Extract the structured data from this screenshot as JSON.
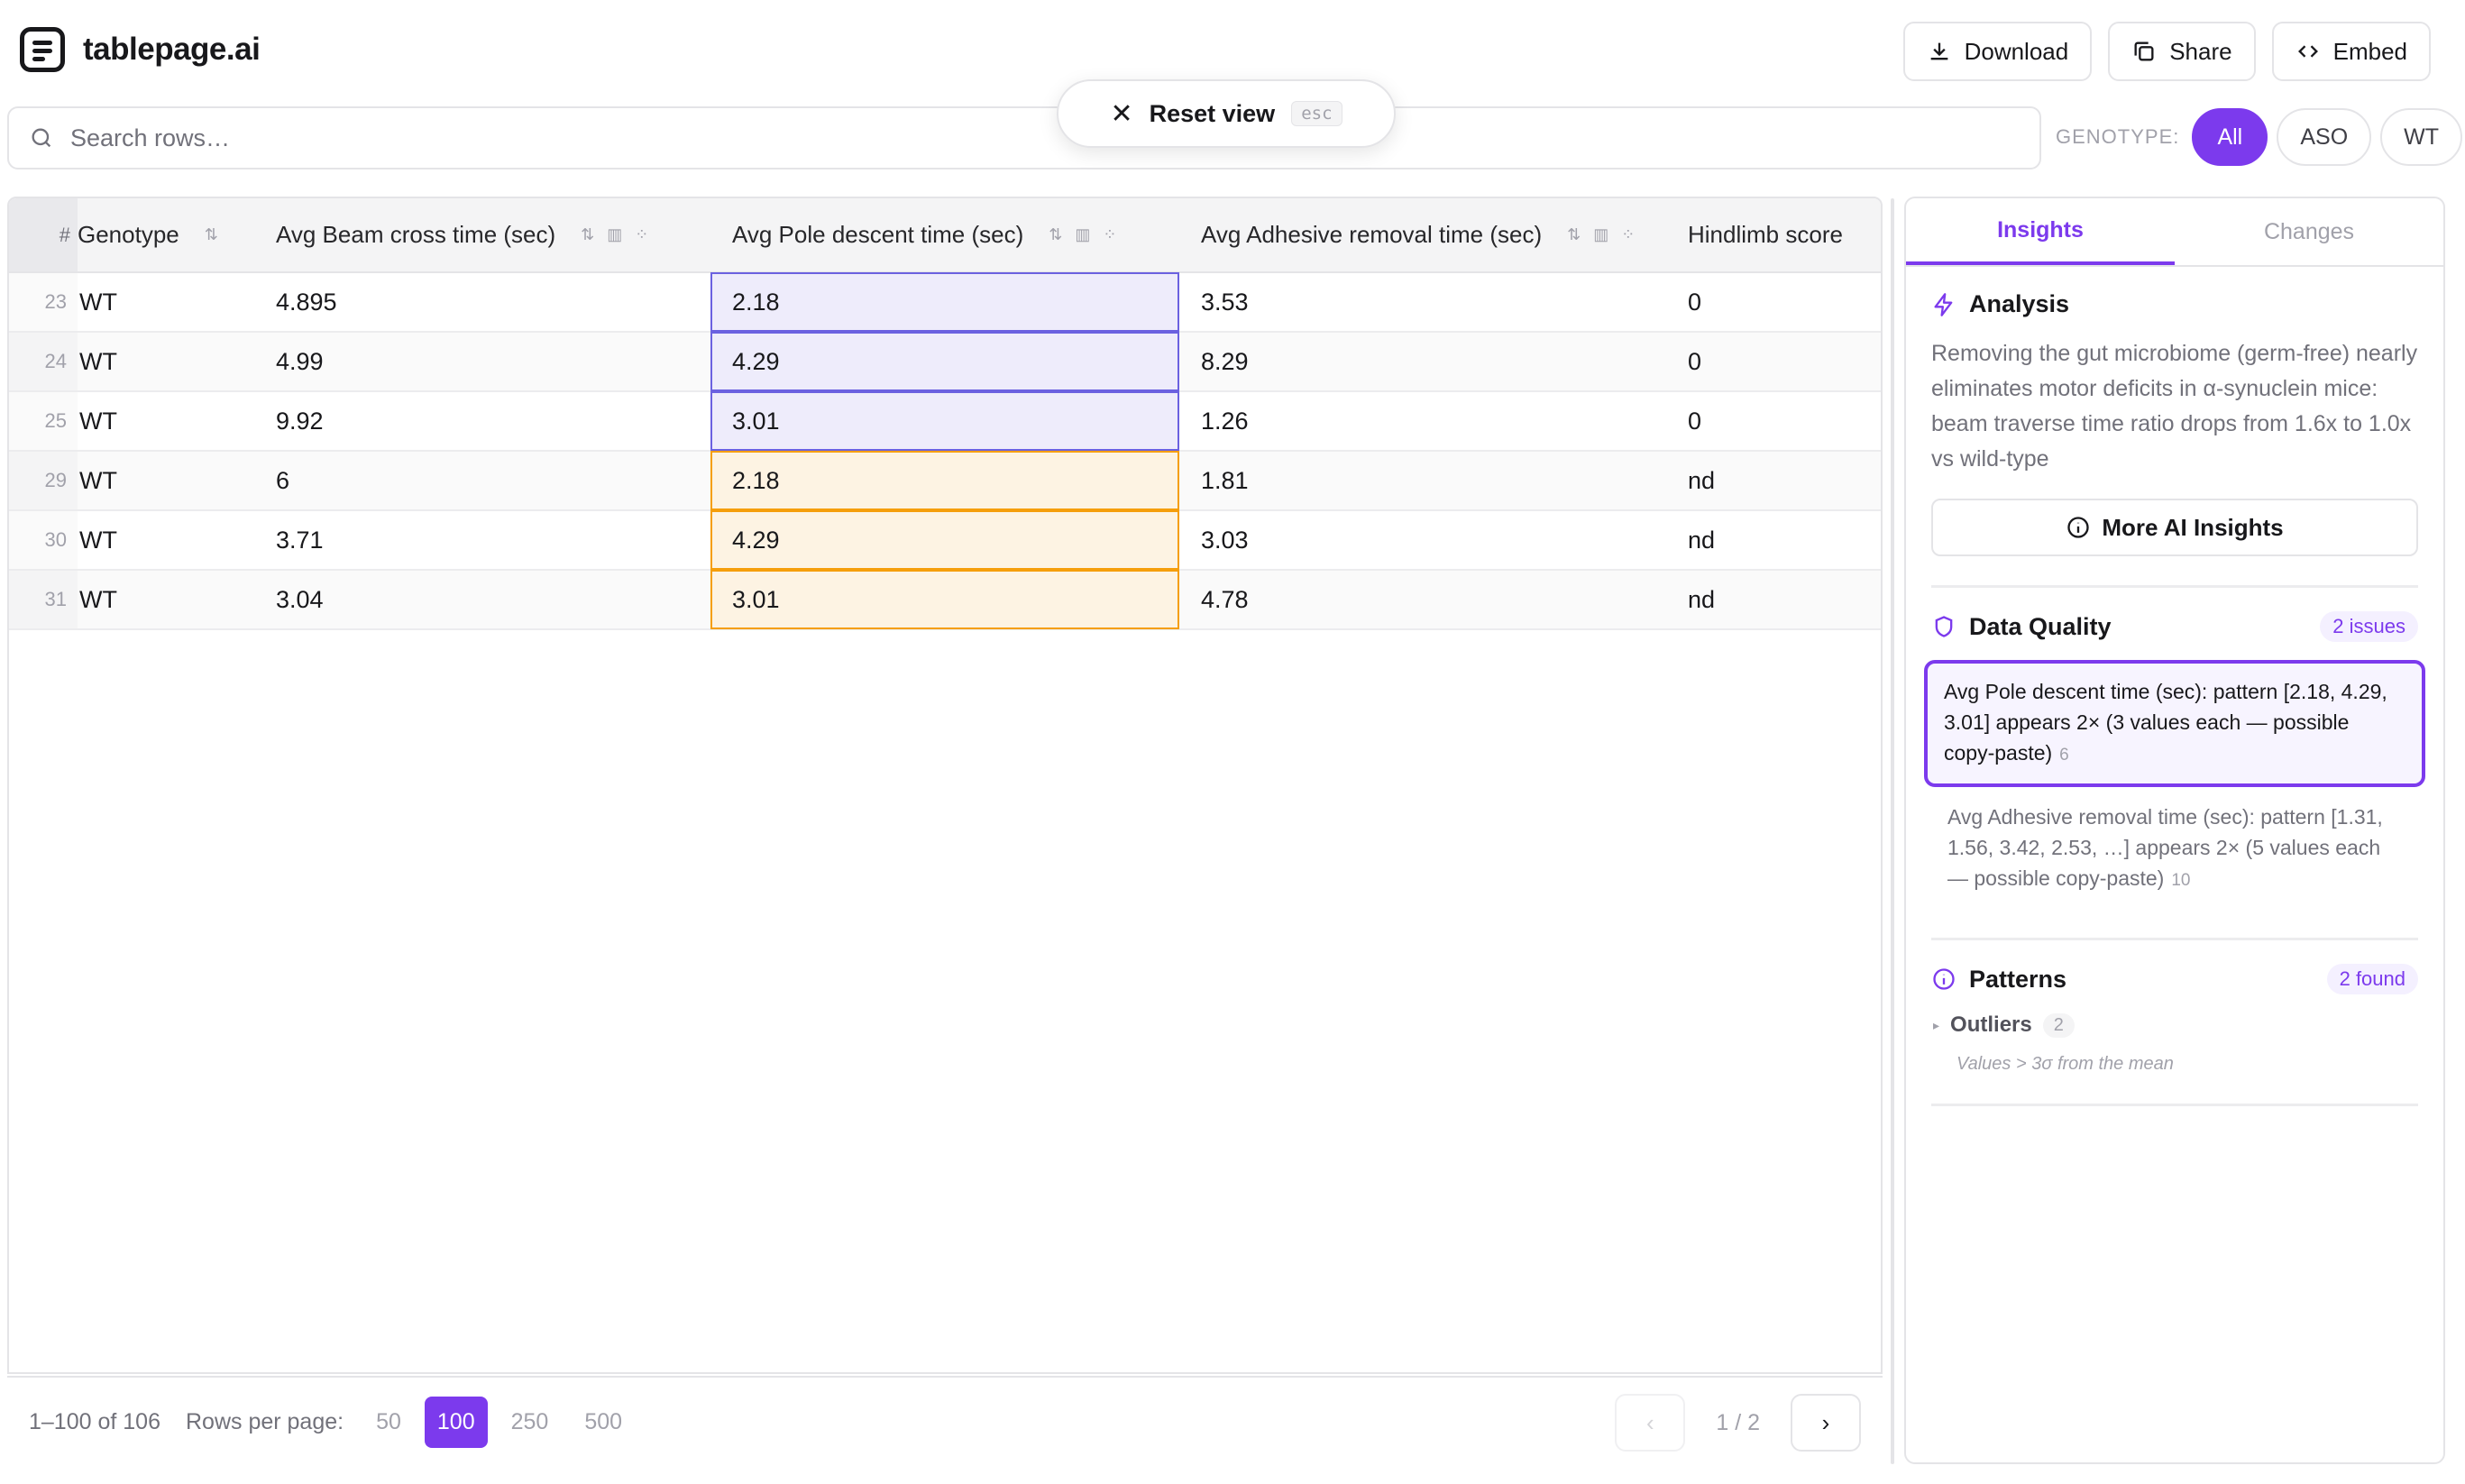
{
  "app": {
    "name": "tablepage.ai"
  },
  "toolbar": {
    "download_label": "Download",
    "share_label": "Share",
    "embed_label": "Embed"
  },
  "reset": {
    "label": "Reset view",
    "shortcut": "esc"
  },
  "search": {
    "placeholder": "Search rows…",
    "value": ""
  },
  "genotype_filter": {
    "label": "GENOTYPE:",
    "options": [
      "All",
      "ASO",
      "WT"
    ],
    "selected": "All"
  },
  "table": {
    "columns": [
      "#",
      "Genotype",
      "Avg Beam cross time (sec)",
      "Avg Pole descent time (sec)",
      "Avg Adhesive removal time (sec)",
      "Hindlimb score"
    ],
    "rows": [
      {
        "n": "23",
        "genotype": "WT",
        "beam": "4.895",
        "pole": "2.18",
        "adhesive": "3.53",
        "hindlimb": "0"
      },
      {
        "n": "24",
        "genotype": "WT",
        "beam": "4.99",
        "pole": "4.29",
        "adhesive": "8.29",
        "hindlimb": "0"
      },
      {
        "n": "25",
        "genotype": "WT",
        "beam": "9.92",
        "pole": "3.01",
        "adhesive": "1.26",
        "hindlimb": "0"
      },
      {
        "n": "29",
        "genotype": "WT",
        "beam": "6",
        "pole": "2.18",
        "adhesive": "1.81",
        "hindlimb": "nd"
      },
      {
        "n": "30",
        "genotype": "WT",
        "beam": "3.71",
        "pole": "4.29",
        "adhesive": "3.03",
        "hindlimb": "nd"
      },
      {
        "n": "31",
        "genotype": "WT",
        "beam": "3.04",
        "pole": "3.01",
        "adhesive": "4.78",
        "hindlimb": "nd"
      }
    ]
  },
  "pagination": {
    "range": "1–100 of 106",
    "rows_per_page_label": "Rows per page:",
    "options": [
      "50",
      "100",
      "250",
      "500"
    ],
    "selected": "100",
    "page_info": "1 / 2"
  },
  "panel": {
    "tabs": [
      "Insights",
      "Changes"
    ],
    "active_tab": "Insights",
    "analysis": {
      "title": "Analysis",
      "text": "Removing the gut microbiome (germ-free) nearly eliminates motor deficits in α-synuclein mice: beam traverse time ratio drops from 1.6x to 1.0x vs wild-type",
      "more_label": "More AI Insights"
    },
    "data_quality": {
      "title": "Data Quality",
      "badge": "2 issues",
      "issues": [
        {
          "text": "Avg Pole descent time (sec): pattern [2.18, 4.29, 3.01] appears 2× (3 values each — possible copy-paste)",
          "count": "6"
        },
        {
          "text": "Avg Adhesive removal time (sec): pattern [1.31, 1.56, 3.42, 2.53, …] appears 2× (5 values each — possible copy-paste)",
          "count": "10"
        }
      ]
    },
    "patterns": {
      "title": "Patterns",
      "badge": "2 found",
      "items": [
        {
          "label": "Outliers",
          "count": "2",
          "description": "Values > 3σ from the mean"
        }
      ]
    }
  },
  "colors": {
    "accent": "#7c3aed",
    "highlight_blue": "#6b61e0",
    "highlight_orange": "#f59e0b"
  }
}
